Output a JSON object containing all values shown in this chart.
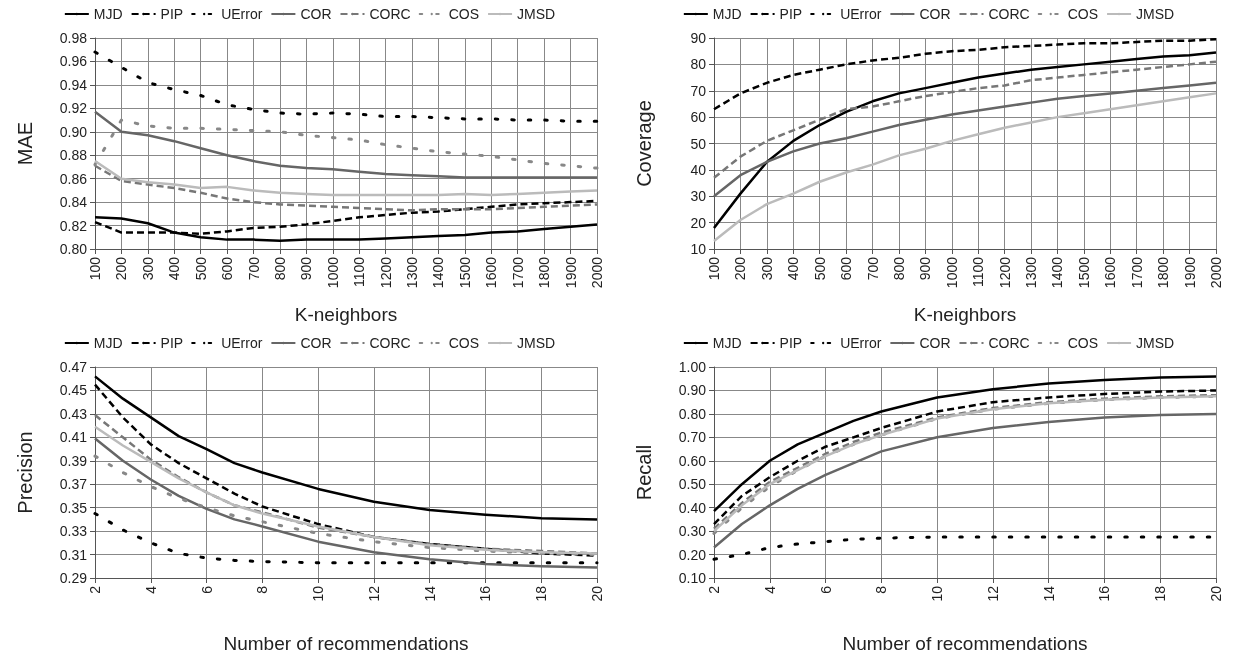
{
  "chart_data": [
    {
      "type": "line",
      "xlabel": "K-neighbors",
      "ylabel": "MAE",
      "grid": true,
      "legend": "top",
      "marker": "none",
      "x": [
        100,
        200,
        300,
        400,
        500,
        600,
        700,
        800,
        900,
        1000,
        1100,
        1200,
        1300,
        1400,
        1500,
        1600,
        1700,
        1800,
        1900,
        2000
      ],
      "xlim": [
        100,
        2000
      ],
      "xticks": [
        100,
        200,
        300,
        400,
        500,
        600,
        700,
        800,
        900,
        1000,
        1100,
        1200,
        1300,
        1400,
        1500,
        1600,
        1700,
        1800,
        1900,
        2000
      ],
      "ylim": [
        0.8,
        0.98
      ],
      "yticks": [
        {
          "value": 0.8,
          "label": "0.80"
        },
        0.82,
        0.84,
        0.86,
        0.88,
        {
          "value": 0.9,
          "label": "0.90"
        },
        0.92,
        0.94,
        0.96,
        0.98
      ],
      "series": [
        {
          "name": "MJD",
          "color": "#000000",
          "line_style": "solid",
          "values": [
            0.827,
            0.826,
            0.822,
            0.814,
            0.81,
            0.808,
            0.808,
            0.807,
            0.808,
            0.808,
            0.808,
            0.809,
            0.81,
            0.811,
            0.812,
            0.814,
            0.815,
            0.817,
            0.819,
            0.821
          ]
        },
        {
          "name": "PIP",
          "color": "#000000",
          "line_style": "dashed",
          "values": [
            0.823,
            0.814,
            0.814,
            0.814,
            0.813,
            0.815,
            0.818,
            0.819,
            0.821,
            0.824,
            0.827,
            0.829,
            0.831,
            0.832,
            0.834,
            0.836,
            0.838,
            0.839,
            0.84,
            0.841
          ]
        },
        {
          "name": "UError",
          "color": "#000000",
          "line_style": "dotted",
          "values": [
            0.968,
            0.955,
            0.942,
            0.936,
            0.931,
            0.923,
            0.919,
            0.916,
            0.915,
            0.916,
            0.915,
            0.913,
            0.913,
            0.912,
            0.911,
            0.911,
            0.91,
            0.91,
            0.909,
            0.909
          ]
        },
        {
          "name": "COR",
          "color": "#666666",
          "line_style": "solid",
          "values": [
            0.917,
            0.9,
            0.897,
            0.892,
            0.886,
            0.88,
            0.875,
            0.871,
            0.869,
            0.868,
            0.866,
            0.864,
            0.863,
            0.862,
            0.861,
            0.861,
            0.861,
            0.861,
            0.861,
            0.861
          ]
        },
        {
          "name": "CORC",
          "color": "#777777",
          "line_style": "dashed",
          "values": [
            0.871,
            0.858,
            0.855,
            0.852,
            0.848,
            0.843,
            0.84,
            0.838,
            0.837,
            0.836,
            0.835,
            0.834,
            0.833,
            0.834,
            0.834,
            0.834,
            0.835,
            0.836,
            0.837,
            0.838
          ]
        },
        {
          "name": "COS",
          "color": "#888888",
          "line_style": "dotted",
          "values": [
            0.872,
            0.91,
            0.905,
            0.903,
            0.903,
            0.902,
            0.901,
            0.9,
            0.897,
            0.895,
            0.893,
            0.889,
            0.886,
            0.883,
            0.881,
            0.879,
            0.876,
            0.873,
            0.871,
            0.869
          ]
        },
        {
          "name": "JMSD",
          "color": "#bbbbbb",
          "line_style": "solid",
          "values": [
            0.875,
            0.86,
            0.857,
            0.855,
            0.852,
            0.853,
            0.85,
            0.848,
            0.847,
            0.846,
            0.846,
            0.846,
            0.846,
            0.846,
            0.847,
            0.846,
            0.847,
            0.848,
            0.849,
            0.85
          ]
        }
      ]
    },
    {
      "type": "line",
      "xlabel": "K-neighbors",
      "ylabel": "Coverage",
      "grid": true,
      "legend": "top",
      "marker": "none",
      "x": [
        100,
        200,
        300,
        400,
        500,
        600,
        700,
        800,
        900,
        1000,
        1100,
        1200,
        1300,
        1400,
        1500,
        1600,
        1700,
        1800,
        1900,
        2000
      ],
      "xlim": [
        100,
        2000
      ],
      "xticks": [
        100,
        200,
        300,
        400,
        500,
        600,
        700,
        800,
        900,
        1000,
        1100,
        1200,
        1300,
        1400,
        1500,
        1600,
        1700,
        1800,
        1900,
        2000
      ],
      "ylim": [
        10,
        90
      ],
      "yticks": [
        10,
        20,
        30,
        40,
        50,
        60,
        70,
        80,
        90
      ],
      "series": [
        {
          "name": "MJD",
          "color": "#000000",
          "line_style": "solid",
          "values": [
            18,
            31,
            43,
            51,
            57,
            62,
            66,
            69,
            71,
            73,
            75,
            76.5,
            78,
            79,
            80,
            81,
            82,
            83,
            83.5,
            84.5
          ]
        },
        {
          "name": "PIP",
          "color": "#000000",
          "line_style": "dashed",
          "values": [
            63,
            69,
            73,
            76,
            78,
            80,
            81.5,
            82.5,
            84,
            85,
            85.5,
            86.5,
            87,
            87.5,
            88,
            88,
            88.5,
            89,
            89,
            89.5
          ]
        },
        {
          "name": "UError",
          "color": "#000000",
          "line_style": "dotted",
          "values": [
            null,
            null,
            null,
            null,
            null,
            null,
            null,
            null,
            null,
            null,
            null,
            null,
            null,
            null,
            null,
            null,
            null,
            null,
            null,
            null
          ]
        },
        {
          "name": "COR",
          "color": "#666666",
          "line_style": "solid",
          "values": [
            30,
            38,
            43,
            47,
            50,
            52,
            54.5,
            57,
            59,
            61,
            62.5,
            64,
            65.5,
            67,
            68,
            69,
            70,
            71,
            72,
            73
          ]
        },
        {
          "name": "CORC",
          "color": "#777777",
          "line_style": "dashed",
          "values": [
            37,
            45,
            51,
            55,
            59,
            63,
            64,
            66,
            68,
            69.5,
            71,
            72,
            74,
            75,
            76,
            77,
            78,
            79,
            80,
            81
          ]
        },
        {
          "name": "COS",
          "color": "#888888",
          "line_style": "dotted",
          "values": [
            null,
            null,
            null,
            null,
            null,
            null,
            null,
            null,
            null,
            null,
            null,
            null,
            null,
            null,
            null,
            null,
            null,
            null,
            null,
            null
          ]
        },
        {
          "name": "JMSD",
          "color": "#bbbbbb",
          "line_style": "solid",
          "values": [
            13,
            21,
            27,
            31,
            35.5,
            39,
            42,
            45.5,
            48,
            51,
            53.5,
            56,
            58,
            60,
            61.5,
            63,
            64.5,
            66,
            67.5,
            69
          ]
        }
      ]
    },
    {
      "type": "line",
      "xlabel": "Number of recommendations",
      "ylabel": "Precision",
      "grid": true,
      "legend": "top",
      "marker": "none",
      "x": [
        2,
        3,
        4,
        5,
        6,
        7,
        8,
        10,
        12,
        14,
        16,
        18,
        20
      ],
      "xlim": [
        2,
        20
      ],
      "xticks": [
        2,
        4,
        6,
        8,
        10,
        12,
        14,
        16,
        18,
        20
      ],
      "ylim": [
        0.29,
        0.47
      ],
      "yticks": [
        0.29,
        0.31,
        0.33,
        0.35,
        0.37,
        0.39,
        0.41,
        0.43,
        0.45,
        0.47
      ],
      "series": [
        {
          "name": "MJD",
          "color": "#000000",
          "line_style": "solid",
          "values": [
            0.462,
            0.443,
            0.427,
            0.411,
            0.4,
            0.388,
            0.38,
            0.366,
            0.355,
            0.348,
            0.344,
            0.341,
            0.34
          ]
        },
        {
          "name": "PIP",
          "color": "#000000",
          "line_style": "dashed",
          "values": [
            0.455,
            0.427,
            0.404,
            0.388,
            0.375,
            0.362,
            0.351,
            0.336,
            0.325,
            0.319,
            0.315,
            0.311,
            0.309
          ]
        },
        {
          "name": "UError",
          "color": "#000000",
          "line_style": "dotted",
          "values": [
            0.345,
            0.331,
            0.32,
            0.311,
            0.307,
            0.305,
            0.304,
            0.303,
            0.303,
            0.303,
            0.303,
            0.303,
            0.303
          ]
        },
        {
          "name": "COR",
          "color": "#666666",
          "line_style": "solid",
          "values": [
            0.409,
            0.39,
            0.374,
            0.36,
            0.349,
            0.34,
            0.334,
            0.321,
            0.312,
            0.306,
            0.302,
            0.3,
            0.299
          ]
        },
        {
          "name": "CORC",
          "color": "#777777",
          "line_style": "dashed",
          "values": [
            0.429,
            0.41,
            0.391,
            0.376,
            0.363,
            0.352,
            0.346,
            0.333,
            0.325,
            0.319,
            0.315,
            0.313,
            0.311
          ]
        },
        {
          "name": "COS",
          "color": "#888888",
          "line_style": "dotted",
          "values": [
            0.394,
            0.38,
            0.368,
            0.358,
            0.35,
            0.343,
            0.338,
            0.328,
            0.321,
            0.316,
            0.313,
            0.311,
            0.31
          ]
        },
        {
          "name": "JMSD",
          "color": "#bbbbbb",
          "line_style": "solid",
          "values": [
            0.419,
            0.403,
            0.389,
            0.375,
            0.363,
            0.352,
            0.345,
            0.334,
            0.325,
            0.318,
            0.314,
            0.312,
            0.311
          ]
        }
      ]
    },
    {
      "type": "line",
      "xlabel": "Number of recommendations",
      "ylabel": "Recall",
      "grid": true,
      "legend": "top",
      "marker": "none",
      "x": [
        2,
        3,
        4,
        5,
        6,
        7,
        8,
        10,
        12,
        14,
        16,
        18,
        20
      ],
      "xlim": [
        2,
        20
      ],
      "xticks": [
        2,
        4,
        6,
        8,
        10,
        12,
        14,
        16,
        18,
        20
      ],
      "ylim": [
        0.1,
        1
      ],
      "yticks": [
        {
          "value": 0.1,
          "label": "0.10"
        },
        {
          "value": 0.2,
          "label": "0.20"
        },
        {
          "value": 0.3,
          "label": "0.30"
        },
        {
          "value": 0.4,
          "label": "0.40"
        },
        {
          "value": 0.5,
          "label": "0.50"
        },
        {
          "value": 0.6,
          "label": "0.60"
        },
        {
          "value": 0.7,
          "label": "0.70"
        },
        {
          "value": 0.8,
          "label": "0.80"
        },
        {
          "value": 0.9,
          "label": "0.90"
        },
        {
          "value": 1,
          "label": "1.00"
        }
      ],
      "series": [
        {
          "name": "MJD",
          "color": "#000000",
          "line_style": "solid",
          "values": [
            0.385,
            0.5,
            0.6,
            0.67,
            0.72,
            0.77,
            0.81,
            0.87,
            0.905,
            0.93,
            0.945,
            0.955,
            0.96
          ]
        },
        {
          "name": "PIP",
          "color": "#000000",
          "line_style": "dashed",
          "values": [
            0.33,
            0.45,
            0.53,
            0.6,
            0.66,
            0.7,
            0.74,
            0.81,
            0.85,
            0.87,
            0.885,
            0.895,
            0.9
          ]
        },
        {
          "name": "UError",
          "color": "#000000",
          "line_style": "dotted",
          "values": [
            0.18,
            0.2,
            0.23,
            0.245,
            0.255,
            0.265,
            0.27,
            0.275,
            0.275,
            0.275,
            0.275,
            0.275,
            0.275
          ]
        },
        {
          "name": "COR",
          "color": "#666666",
          "line_style": "solid",
          "values": [
            0.23,
            0.33,
            0.41,
            0.48,
            0.54,
            0.59,
            0.64,
            0.7,
            0.74,
            0.765,
            0.785,
            0.795,
            0.8
          ]
        },
        {
          "name": "CORC",
          "color": "#777777",
          "line_style": "dashed",
          "values": [
            0.31,
            0.42,
            0.51,
            0.57,
            0.63,
            0.68,
            0.72,
            0.785,
            0.825,
            0.85,
            0.865,
            0.875,
            0.88
          ]
        },
        {
          "name": "COS",
          "color": "#888888",
          "line_style": "dotted",
          "values": [
            0.29,
            0.4,
            0.49,
            0.56,
            0.62,
            0.67,
            0.71,
            0.78,
            0.82,
            0.845,
            0.86,
            0.87,
            0.875
          ]
        },
        {
          "name": "JMSD",
          "color": "#bbbbbb",
          "line_style": "solid",
          "values": [
            0.3,
            0.41,
            0.5,
            0.56,
            0.62,
            0.67,
            0.71,
            0.78,
            0.82,
            0.845,
            0.86,
            0.87,
            0.875
          ]
        }
      ]
    }
  ]
}
